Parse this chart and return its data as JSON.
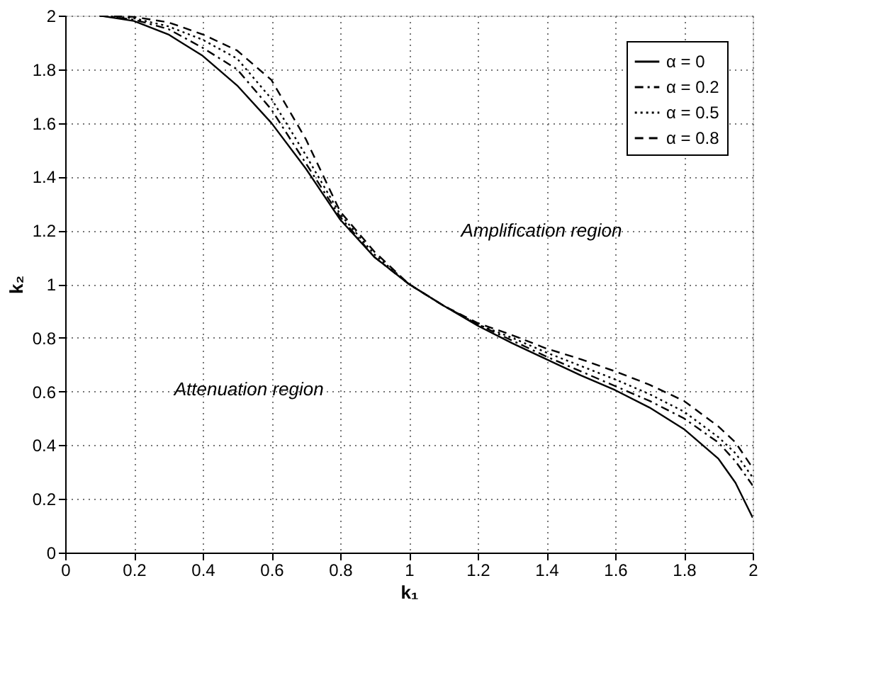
{
  "chart_data": {
    "type": "line",
    "xlabel": "k₁",
    "ylabel": "k₂",
    "x": [
      0.1,
      0.2,
      0.3,
      0.4,
      0.5,
      0.6,
      0.7,
      0.8,
      0.9,
      1.0,
      1.1,
      1.2,
      1.3,
      1.4,
      1.5,
      1.6,
      1.7,
      1.8,
      1.9,
      1.95,
      2.0
    ],
    "series": [
      {
        "name": "α = 0",
        "color": "#000000",
        "line_style": "solid",
        "values": [
          2,
          1.98,
          1.93,
          1.85,
          1.74,
          1.6,
          1.43,
          1.24,
          1.1,
          1,
          0.92,
          0.845,
          0.78,
          0.72,
          0.66,
          0.605,
          0.54,
          0.46,
          0.35,
          0.26,
          0.13
        ]
      },
      {
        "name": "α = 0.2",
        "color": "#000000",
        "line_style": "dashdot",
        "values": [
          2,
          1.985,
          1.95,
          1.88,
          1.8,
          1.65,
          1.45,
          1.25,
          1.1,
          1,
          0.92,
          0.85,
          0.79,
          0.73,
          0.675,
          0.62,
          0.565,
          0.5,
          0.41,
          0.34,
          0.25
        ]
      },
      {
        "name": "α = 0.5",
        "color": "#000000",
        "line_style": "dotted",
        "values": [
          2,
          1.99,
          1.96,
          1.91,
          1.84,
          1.69,
          1.48,
          1.26,
          1.11,
          1,
          0.92,
          0.85,
          0.8,
          0.745,
          0.695,
          0.645,
          0.59,
          0.525,
          0.43,
          0.37,
          0.28
        ]
      },
      {
        "name": "α = 0.8",
        "color": "#000000",
        "line_style": "dashed",
        "values": [
          2,
          1.995,
          1.975,
          1.93,
          1.87,
          1.76,
          1.54,
          1.27,
          1.12,
          1,
          0.92,
          0.855,
          0.81,
          0.76,
          0.72,
          0.675,
          0.625,
          0.565,
          0.47,
          0.41,
          0.315
        ]
      }
    ],
    "xlim": [
      0,
      2
    ],
    "ylim": [
      0,
      2
    ],
    "xticks": [
      0,
      0.2,
      0.4,
      0.6,
      0.8,
      1,
      1.2,
      1.4,
      1.6,
      1.8,
      2
    ],
    "yticks": [
      0,
      0.2,
      0.4,
      0.6,
      0.8,
      1,
      1.2,
      1.4,
      1.6,
      1.8,
      2
    ],
    "grid": true,
    "legend": "top right",
    "annotations": [
      "Amplification region",
      "Attenuation region"
    ]
  }
}
